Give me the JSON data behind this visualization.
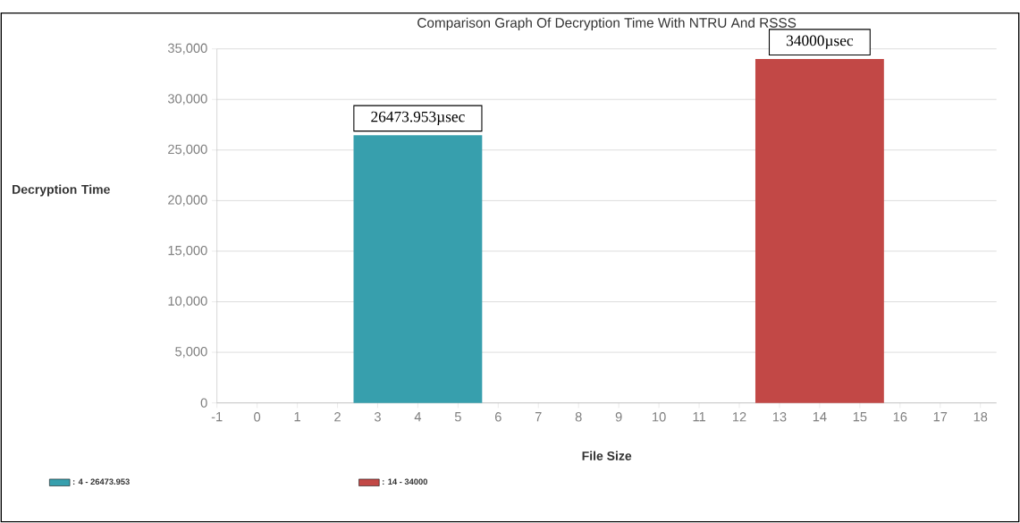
{
  "chart_data": {
    "type": "bar",
    "title": "Comparison Graph Of Decryption Time With NTRU And RSSS",
    "xlabel": "File Size",
    "ylabel": "Decryption Time",
    "series": [
      {
        "name": ": 4 - 26473.953",
        "color": "#379fad",
        "x": [
          4
        ],
        "values": [
          26473.953
        ]
      },
      {
        "name": ": 14 - 34000",
        "color": "#c24846",
        "x": [
          14
        ],
        "values": [
          34000
        ]
      }
    ],
    "annotations": [
      {
        "text": "26473.953µsec",
        "x": 4,
        "y": 26473.953
      },
      {
        "text": "34000µsec",
        "x": 14,
        "y": 34000
      }
    ],
    "xlim": [
      -1,
      18.4
    ],
    "xticks": [
      -1,
      0,
      1,
      2,
      3,
      4,
      5,
      6,
      7,
      8,
      9,
      10,
      11,
      12,
      13,
      14,
      15,
      16,
      17,
      18
    ],
    "ylim": [
      0,
      35000
    ],
    "yticks": [
      0,
      {
        "value": 5000,
        "label": "5,000"
      },
      {
        "value": 10000,
        "label": "10,000"
      },
      {
        "value": 15000,
        "label": "15,000"
      },
      {
        "value": 20000,
        "label": "20,000"
      },
      {
        "value": 25000,
        "label": "25,000"
      },
      {
        "value": 30000,
        "label": "30,000"
      },
      {
        "value": 35000,
        "label": "35,000"
      }
    ],
    "grid": "y",
    "legend": "bottom left"
  }
}
